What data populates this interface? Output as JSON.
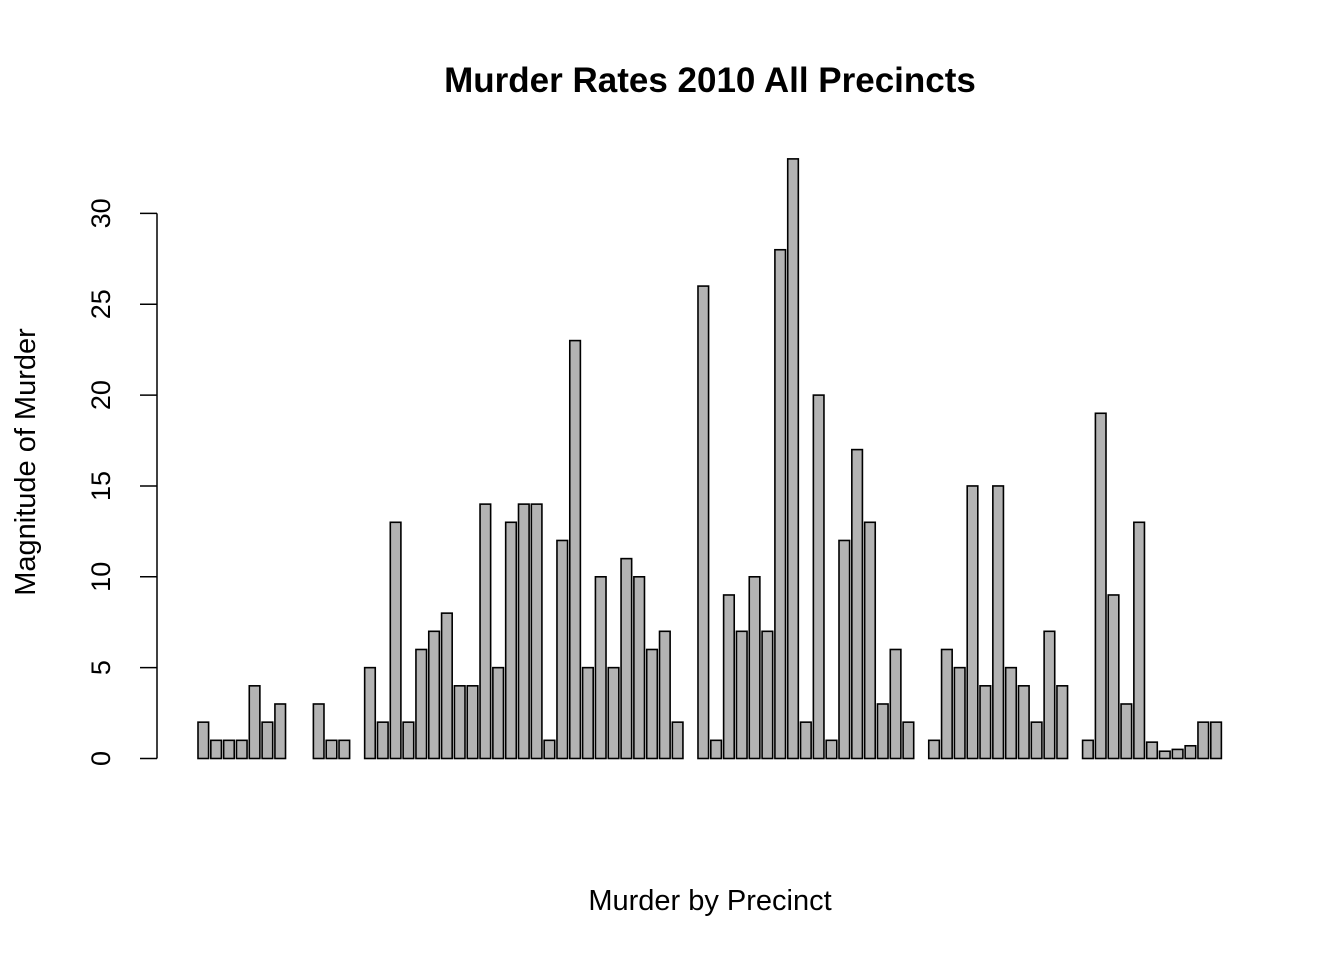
{
  "chart_data": {
    "type": "bar",
    "title": "Murder Rates 2010 All Precincts",
    "xlabel": "Murder by Precinct",
    "ylabel": "Magnitude of Murder",
    "ylim": [
      0,
      33
    ],
    "yticks": [
      "0",
      "5",
      "10",
      "15",
      "20",
      "25",
      "30"
    ],
    "grid": false,
    "legend": "none",
    "values": [
      2,
      1,
      1,
      1,
      4,
      2,
      3,
      0,
      0,
      3,
      1,
      1,
      0,
      5,
      2,
      13,
      2,
      6,
      7,
      8,
      4,
      4,
      14,
      5,
      13,
      14,
      14,
      1,
      12,
      23,
      5,
      10,
      5,
      11,
      10,
      6,
      7,
      2,
      0,
      26,
      1,
      9,
      7,
      10,
      7,
      28,
      33,
      2,
      20,
      1,
      12,
      17,
      13,
      3,
      6,
      2,
      0,
      1,
      6,
      5,
      15,
      4,
      15,
      5,
      4,
      2,
      7,
      4,
      0,
      1,
      19,
      9,
      3,
      13,
      0.9,
      0.4,
      0.5,
      0.7,
      2,
      2
    ],
    "bar_fill": "#b3b3b3",
    "bar_stroke": "#000000"
  }
}
